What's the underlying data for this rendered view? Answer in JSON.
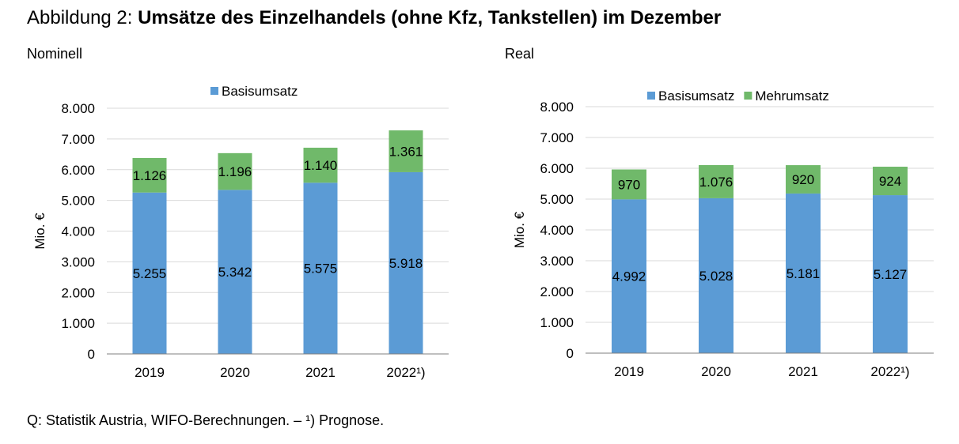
{
  "figure": {
    "title_prefix": "Abbildung 2: ",
    "title_bold": "Umsätze des Einzelhandels (ohne Kfz, Tankstellen) im Dezember",
    "footnote": "Q: Statistik Austria, WIFO-Berechnungen. – ¹) Prognose."
  },
  "colors": {
    "basis": "#5b9bd5",
    "mehr": "#70b96a",
    "grid": "#d9d9d9",
    "axis": "#7f7f7f"
  },
  "chart_data": [
    {
      "panel_title": "Nominell",
      "type": "bar",
      "stacked": true,
      "categories": [
        "2019",
        "2020",
        "2021",
        "2022¹)"
      ],
      "series": [
        {
          "name": "Basisumsatz",
          "values": [
            5255,
            5342,
            5575,
            5918
          ],
          "labels": [
            "5.255",
            "5.342",
            "5.575",
            "5.918"
          ]
        },
        {
          "name": "",
          "values": [
            1126,
            1196,
            1140,
            1361
          ],
          "labels": [
            "1.126",
            "1.196",
            "1.140",
            "1.361"
          ]
        }
      ],
      "legend": [
        "Basisumsatz"
      ],
      "legend_position": "top",
      "ylabel": "Mio. €",
      "ylim": [
        0,
        8000
      ],
      "yticks": [
        0,
        1000,
        2000,
        3000,
        4000,
        5000,
        6000,
        7000,
        8000
      ],
      "ytick_labels": [
        "0",
        "1.000",
        "2.000",
        "3.000",
        "4.000",
        "5.000",
        "6.000",
        "7.000",
        "8.000"
      ],
      "grid": true
    },
    {
      "panel_title": "Real",
      "type": "bar",
      "stacked": true,
      "categories": [
        "2019",
        "2020",
        "2021",
        "2022¹)"
      ],
      "series": [
        {
          "name": "Basisumsatz",
          "values": [
            4992,
            5028,
            5181,
            5127
          ],
          "labels": [
            "4.992",
            "5.028",
            "5.181",
            "5.127"
          ]
        },
        {
          "name": "Mehrumsatz",
          "values": [
            970,
            1076,
            920,
            924
          ],
          "labels": [
            "970",
            "1.076",
            "920",
            "924"
          ]
        }
      ],
      "legend": [
        "Basisumsatz",
        "Mehrumsatz"
      ],
      "legend_position": "top",
      "ylabel": "Mio. €",
      "ylim": [
        0,
        8000
      ],
      "yticks": [
        0,
        1000,
        2000,
        3000,
        4000,
        5000,
        6000,
        7000,
        8000
      ],
      "ytick_labels": [
        "0",
        "1.000",
        "2.000",
        "3.000",
        "4.000",
        "5.000",
        "6.000",
        "7.000",
        "8.000"
      ],
      "grid": true
    }
  ]
}
